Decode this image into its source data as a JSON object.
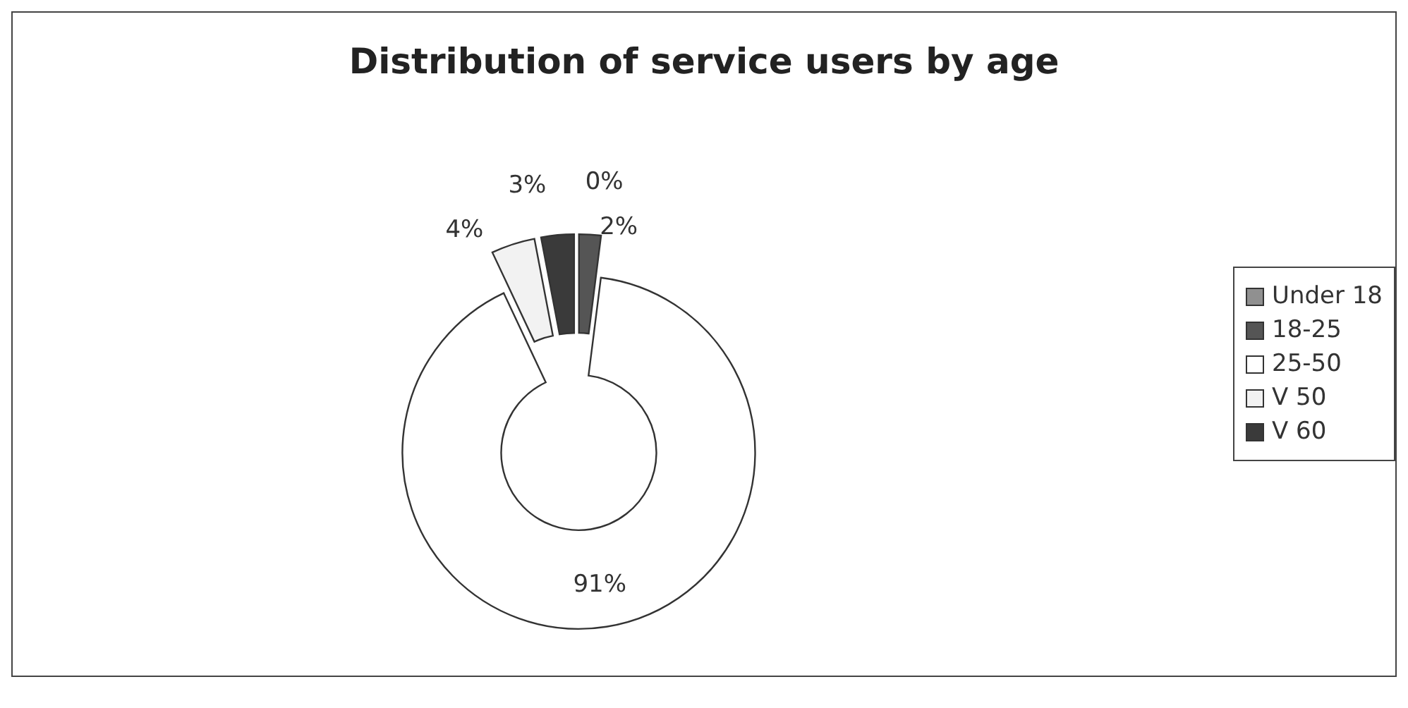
{
  "chart_data": {
    "type": "donut",
    "title": "Distribution of service users by age",
    "categories": [
      "Under 18",
      "18-25",
      "25-50",
      "V 50",
      "V 60"
    ],
    "values": [
      0,
      2,
      91,
      4,
      3
    ],
    "colors": [
      "#909090",
      "#555555",
      "#ffffff",
      "#f2f2f2",
      "#3a3a3a"
    ],
    "value_labels": [
      "0%",
      "2%",
      "91%",
      "4%",
      "3%"
    ],
    "legend": "right"
  }
}
